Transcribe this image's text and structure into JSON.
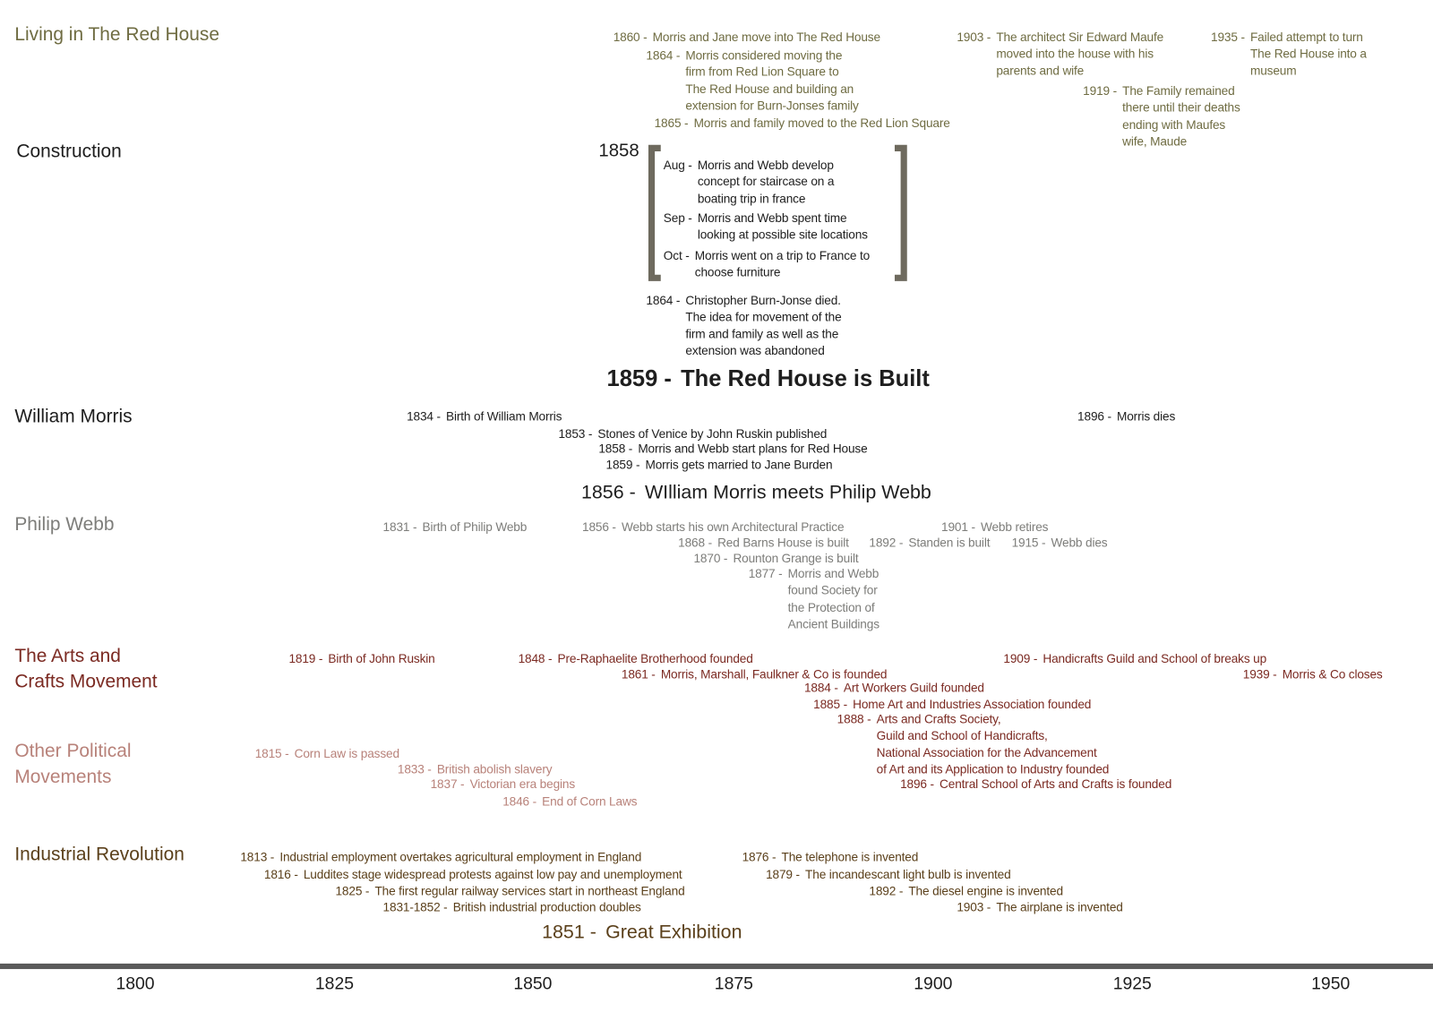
{
  "lanes": [
    {
      "label": [
        "Living in The Red House"
      ],
      "events": [
        {
          "year": "1860 -",
          "lines": [
            "Morris and Jane move into The Red House"
          ]
        },
        {
          "year": "1864 -",
          "lines": [
            "Morris considered moving the",
            "firm from Red Lion Square to",
            "The Red House and building an",
            "extension for Burn-Jonses family"
          ]
        },
        {
          "year": "1865 -",
          "lines": [
            "Morris and family moved to the Red Lion Square"
          ]
        },
        {
          "year": "1903 -",
          "lines": [
            "The architect Sir Edward Maufe",
            "moved into the house with his",
            "parents and wife"
          ]
        },
        {
          "year": "1919 -",
          "lines": [
            "The Family remained",
            "there until their deaths",
            "ending with Maufes",
            "wife, Maude"
          ]
        },
        {
          "year": "1935 -",
          "lines": [
            "Failed attempt to turn",
            "The Red House into a",
            "museum"
          ]
        }
      ]
    },
    {
      "label": [
        "Construction"
      ],
      "bracket_year": "1858",
      "months": [
        {
          "month": "Aug -",
          "lines": [
            "Morris and Webb develop",
            "concept for staircase on a",
            "boating trip in france"
          ]
        },
        {
          "month": "Sep -",
          "lines": [
            "Morris and Webb spent time",
            "looking at possible site locations"
          ]
        },
        {
          "month": "Oct -",
          "lines": [
            "Morris went on a trip to France to",
            "choose furniture"
          ]
        }
      ],
      "events": [
        {
          "year": "1864 -",
          "lines": [
            "Christopher Burn-Jonse died.",
            "The idea for movement of the",
            "firm and family as well as the",
            "extension was abandoned"
          ]
        }
      ],
      "headline": {
        "year": "1859 -",
        "text": "The Red House is Built"
      }
    },
    {
      "label": [
        "William Morris"
      ],
      "events": [
        {
          "year": "1834 -",
          "lines": [
            "Birth of William Morris"
          ]
        },
        {
          "year": "1853 -",
          "lines": [
            "Stones of Venice by John Ruskin published"
          ]
        },
        {
          "year": "1858 -",
          "lines": [
            "Morris and Webb start plans for Red House"
          ]
        },
        {
          "year": "1859 -",
          "lines": [
            "Morris gets married to Jane Burden"
          ]
        },
        {
          "year": "1896 -",
          "lines": [
            "Morris dies"
          ]
        }
      ],
      "headline": {
        "year": "1856 -",
        "text": "WIlliam Morris meets Philip Webb"
      }
    },
    {
      "label": [
        "Philip Webb"
      ],
      "events": [
        {
          "year": "1831 -",
          "lines": [
            "Birth of Philip Webb"
          ]
        },
        {
          "year": "1856 -",
          "lines": [
            "Webb starts his own Architectural Practice"
          ]
        },
        {
          "year": "1868 -",
          "lines": [
            "Red Barns House is built"
          ]
        },
        {
          "year": "1870 -",
          "lines": [
            "Rounton Grange is built"
          ]
        },
        {
          "year": "1877 -",
          "lines": [
            "Morris and Webb",
            "found Society for",
            "the Protection of",
            "Ancient Buildings"
          ]
        },
        {
          "year": "1892 -",
          "lines": [
            "Standen is built"
          ]
        },
        {
          "year": "1901 -",
          "lines": [
            "Webb retires"
          ]
        },
        {
          "year": "1915 -",
          "lines": [
            "Webb dies"
          ]
        }
      ]
    },
    {
      "label": [
        "The Arts and",
        "Crafts Movement"
      ],
      "events": [
        {
          "year": "1819 -",
          "lines": [
            "Birth of John Ruskin"
          ]
        },
        {
          "year": "1848 -",
          "lines": [
            "Pre-Raphaelite Brotherhood founded"
          ]
        },
        {
          "year": "1861 -",
          "lines": [
            "Morris, Marshall, Faulkner & Co is founded"
          ]
        },
        {
          "year": "1884 -",
          "lines": [
            "Art Workers Guild founded"
          ]
        },
        {
          "year": "1885 -",
          "lines": [
            "Home Art and Industries Association founded"
          ]
        },
        {
          "year": "1888 -",
          "lines": [
            "Arts and Crafts Society,",
            "Guild and School of Handicrafts,",
            "National Association for the Advancement",
            "of Art and its Application to Industry founded"
          ]
        },
        {
          "year": "1896 -",
          "lines": [
            "Central School of Arts and Crafts is founded"
          ]
        },
        {
          "year": "1909 -",
          "lines": [
            "Handicrafts Guild and School of breaks up"
          ]
        },
        {
          "year": "1939 -",
          "lines": [
            "Morris & Co closes"
          ]
        }
      ]
    },
    {
      "label": [
        "Other Political",
        "Movements"
      ],
      "events": [
        {
          "year": "1815 -",
          "lines": [
            "Corn Law is passed"
          ]
        },
        {
          "year": "1833 -",
          "lines": [
            "British abolish slavery"
          ]
        },
        {
          "year": "1837 -",
          "lines": [
            "Victorian era begins"
          ]
        },
        {
          "year": "1846 -",
          "lines": [
            "End of Corn Laws"
          ]
        }
      ]
    },
    {
      "label": [
        "Industrial Revolution"
      ],
      "events": [
        {
          "year": "1813 -",
          "lines": [
            "Industrial employment overtakes agricultural employment in England"
          ]
        },
        {
          "year": "1816 -",
          "lines": [
            "Luddites stage widespread protests against low pay and unemployment"
          ]
        },
        {
          "year": "1825 -",
          "lines": [
            "The first regular railway services start in northeast England"
          ]
        },
        {
          "year": "1831-1852 -",
          "lines": [
            "British industrial production doubles"
          ]
        },
        {
          "year": "1876 -",
          "lines": [
            "The telephone is invented"
          ]
        },
        {
          "year": "1879 -",
          "lines": [
            "The incandescant light bulb is invented"
          ]
        },
        {
          "year": "1892 -",
          "lines": [
            "The diesel engine is invented"
          ]
        },
        {
          "year": "1903 -",
          "lines": [
            "The airplane is invented"
          ]
        }
      ],
      "headline": {
        "year": "1851 -",
        "text": "Great Exhibition"
      }
    }
  ],
  "axis": {
    "ticks": [
      1800,
      1825,
      1850,
      1875,
      1900,
      1925,
      1950
    ]
  }
}
